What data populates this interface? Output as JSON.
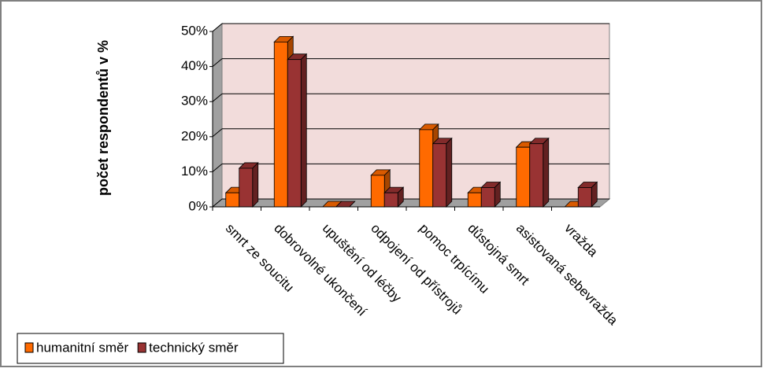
{
  "chart_data": {
    "type": "bar3d",
    "y_axis_label": "počet respondentů v %",
    "categories": [
      "smrt ze soucitu",
      "dobrovolné ukončení",
      "upuštění od léčby",
      "odpojení od přístrojů",
      "pomoc trpícímu",
      "důstojná smrt",
      "asistovaná sebevražda",
      "vražda"
    ],
    "series": [
      {
        "name": "humanitní směr",
        "color": "#ff6a00",
        "values": [
          4,
          47,
          0,
          9,
          22,
          4,
          17,
          0
        ]
      },
      {
        "name": "technický směr",
        "color": "#993333",
        "values": [
          11,
          42,
          0,
          4,
          18,
          5.5,
          18,
          5.5
        ]
      }
    ],
    "ylim": [
      0,
      50
    ],
    "yticks": [
      {
        "value": 0,
        "label": "0%"
      },
      {
        "value": 10,
        "label": "10%"
      },
      {
        "value": 20,
        "label": "20%"
      },
      {
        "value": 30,
        "label": "30%"
      },
      {
        "value": 40,
        "label": "40%"
      },
      {
        "value": 50,
        "label": "50%"
      }
    ],
    "grid": true,
    "legend": "bottom-left"
  }
}
